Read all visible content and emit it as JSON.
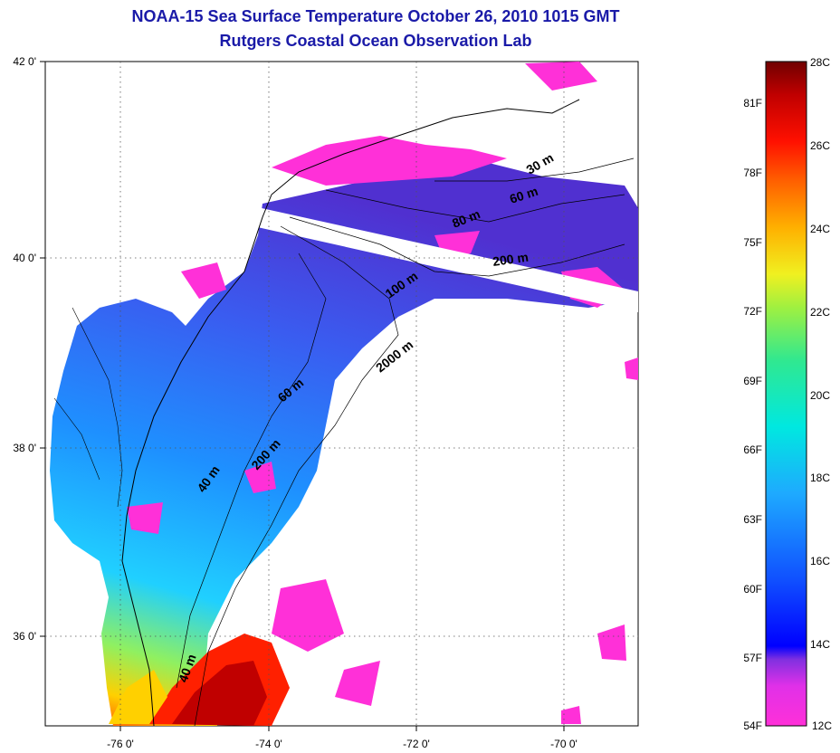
{
  "title": "NOAA-15 Sea Surface Temperature October 26, 2010 1015 GMT",
  "subtitle": "Rutgers Coastal Ocean Observation Lab",
  "map": {
    "lon_ticks": [
      "-76 0'",
      "-74 0'",
      "-72 0'",
      "-70 0'"
    ],
    "lat_ticks": [
      "42 0'",
      "40 0'",
      "38 0'",
      "36 0'"
    ],
    "contour_labels": [
      "30 m",
      "60 m",
      "80 m",
      "200 m",
      "100 m",
      "2000 m",
      "60 m",
      "200 m",
      "40 m",
      "40 m"
    ]
  },
  "colorbar": {
    "celsius_labels": [
      "28C",
      "26C",
      "24C",
      "22C",
      "20C",
      "18C",
      "16C",
      "14C",
      "12C"
    ],
    "fahrenheit_labels": [
      "81F",
      "78F",
      "75F",
      "72F",
      "69F",
      "66F",
      "63F",
      "60F",
      "57F",
      "54F"
    ],
    "colors": [
      "#ff30d8",
      "#a030e0",
      "#0000ff",
      "#1e7cff",
      "#00e0e0",
      "#60e880",
      "#e8f030",
      "#ff9a00",
      "#ff2000",
      "#b00000",
      "#600000"
    ]
  }
}
